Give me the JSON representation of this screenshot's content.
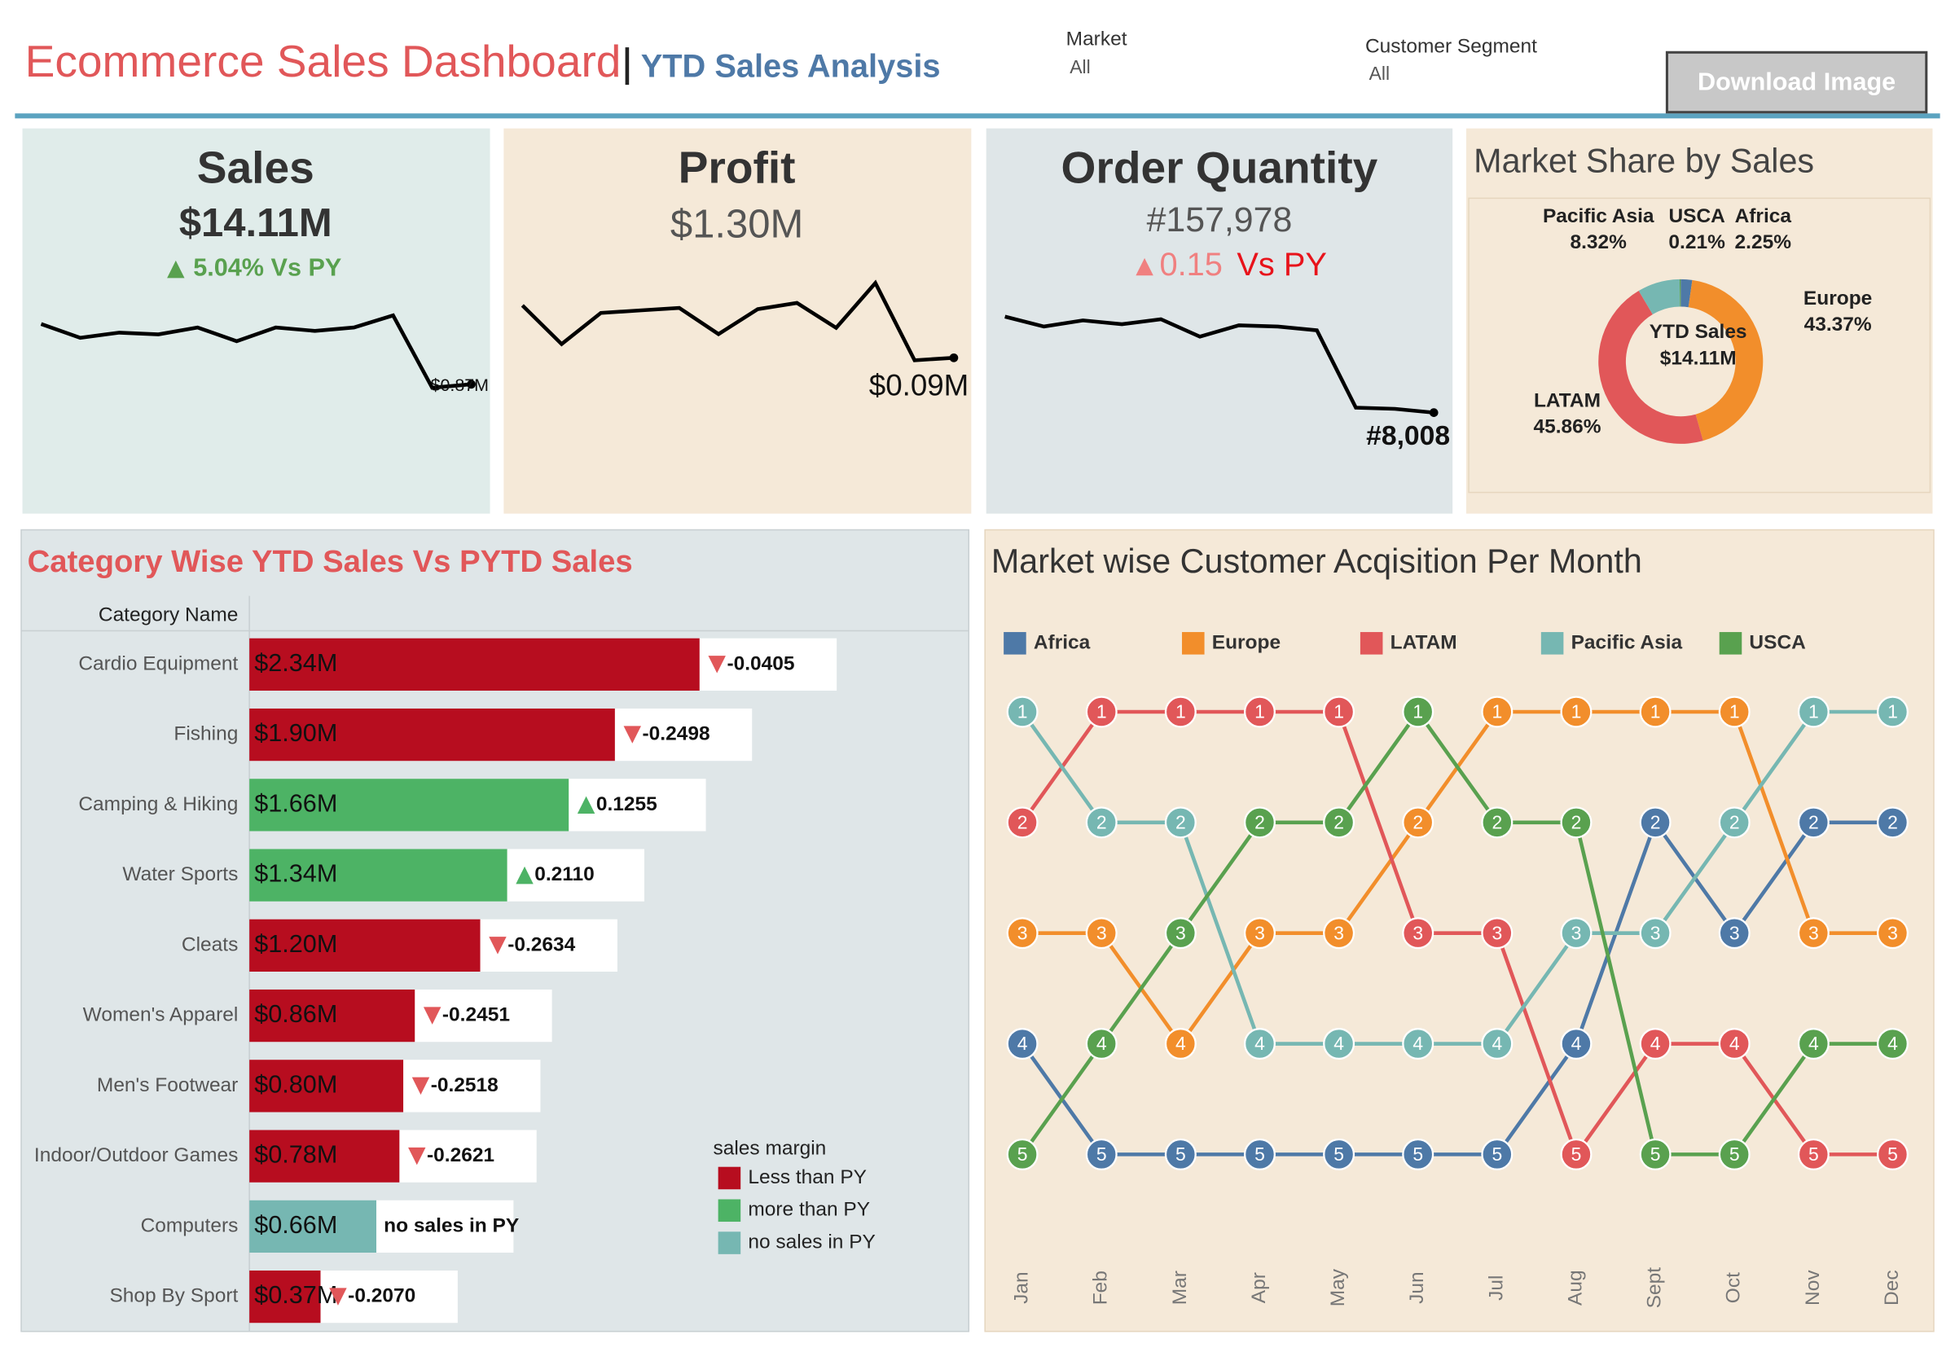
{
  "header": {
    "title": "Ecommerce Sales Dashboard",
    "subtitle": "YTD Sales Analysis"
  },
  "filters": [
    {
      "label": "Market",
      "value": "All"
    },
    {
      "label": "Customer Segment",
      "value": "All"
    }
  ],
  "button": "Download Image",
  "chart_data": [
    {
      "type": "sparkline",
      "title": "Sales",
      "value": "$14.11M",
      "change_label": "5.04% Vs PY",
      "color": "#000000",
      "values": [
        1.22,
        1.14,
        1.17,
        1.16,
        1.2,
        1.12,
        1.2,
        1.18,
        1.2,
        1.27,
        0.85,
        0.87
      ],
      "end_label": "$0.87M"
    },
    {
      "type": "sparkline",
      "title": "Profit",
      "value": "$1.30M",
      "color": "#000000",
      "values": [
        0.132,
        0.101,
        0.126,
        0.128,
        0.13,
        0.109,
        0.129,
        0.134,
        0.114,
        0.15,
        0.088,
        0.09
      ],
      "end_label": "$0.09M"
    },
    {
      "type": "sparkline",
      "title": "Order Quantity",
      "value": "#157,978",
      "change_label": "0.15",
      "change_note": "Vs PY",
      "color": "#000000",
      "values": [
        13630,
        13050,
        13410,
        13190,
        13480,
        12460,
        13120,
        13050,
        12830,
        8300,
        8230,
        8008
      ],
      "end_label": "#8,008"
    },
    {
      "type": "donut",
      "title": "Market Share by Sales",
      "center_label": "YTD Sales",
      "center_value": "$14.11M",
      "categories": [
        "Africa",
        "Europe",
        "LATAM",
        "Pacific Asia",
        "USCA"
      ],
      "values": [
        2.25,
        43.37,
        45.86,
        8.32,
        0.21
      ],
      "value_labels": [
        "2.25%",
        "43.37%",
        "45.86%",
        "8.32%",
        "0.21%"
      ],
      "colors": [
        "#4e79a7",
        "#f28e2b",
        "#e15759",
        "#76b7b2",
        "#59a14f"
      ]
    },
    {
      "type": "bar",
      "title": "Category Wise YTD Sales Vs PYTD Sales",
      "column_header": "Category Name",
      "categories": [
        "Cardio Equipment",
        "Fishing",
        "Camping & Hiking",
        "Water Sports",
        "Cleats",
        "Women's Apparel",
        "Men's Footwear",
        "Indoor/Outdoor Games",
        "Computers",
        "Shop By Sport"
      ],
      "values": [
        2.34,
        1.9,
        1.66,
        1.34,
        1.2,
        0.86,
        0.8,
        0.78,
        0.66,
        0.37
      ],
      "value_labels": [
        "$2.34M",
        "$1.90M",
        "$1.66M",
        "$1.34M",
        "$1.20M",
        "$0.86M",
        "$0.80M",
        "$0.78M",
        "$0.66M",
        "$0.37M"
      ],
      "changes": [
        -0.0405,
        -0.2498,
        0.1255,
        0.211,
        -0.2634,
        -0.2451,
        -0.2518,
        -0.2621,
        null,
        -0.207
      ],
      "change_labels": [
        "-0.0405",
        "-0.2498",
        "0.1255",
        "0.2110",
        "-0.2634",
        "-0.2451",
        "-0.2518",
        "-0.2621",
        "no sales in PY",
        "-0.2070"
      ],
      "legend": {
        "title": "sales margin",
        "items": [
          {
            "name": "Less than PY",
            "color": "#b70d1f"
          },
          {
            "name": "more than PY",
            "color": "#4db365"
          },
          {
            "name": "no sales in PY",
            "color": "#76b7b2"
          }
        ]
      }
    },
    {
      "type": "line",
      "title": "Market wise Customer Acqisition Per Month",
      "categories": [
        "Jan",
        "Feb",
        "Mar",
        "Apr",
        "May",
        "Jun",
        "Jul",
        "Aug",
        "Sept",
        "Oct",
        "Nov",
        "Dec"
      ],
      "ylim": [
        5,
        1
      ],
      "series": [
        {
          "name": "Africa",
          "color": "#4e79a7",
          "values": [
            4,
            5,
            5,
            5,
            5,
            5,
            5,
            4,
            2,
            3,
            2,
            2
          ]
        },
        {
          "name": "Europe",
          "color": "#f28e2b",
          "values": [
            3,
            3,
            4,
            3,
            3,
            2,
            1,
            1,
            1,
            1,
            3,
            3
          ]
        },
        {
          "name": "LATAM",
          "color": "#e15759",
          "values": [
            2,
            1,
            1,
            1,
            1,
            3,
            3,
            5,
            4,
            4,
            5,
            5
          ]
        },
        {
          "name": "Pacific Asia",
          "color": "#76b7b2",
          "values": [
            1,
            2,
            2,
            4,
            4,
            4,
            4,
            3,
            3,
            2,
            1,
            1
          ]
        },
        {
          "name": "USCA",
          "color": "#59a14f",
          "values": [
            5,
            4,
            3,
            2,
            2,
            1,
            2,
            2,
            5,
            5,
            4,
            4
          ]
        }
      ]
    }
  ]
}
